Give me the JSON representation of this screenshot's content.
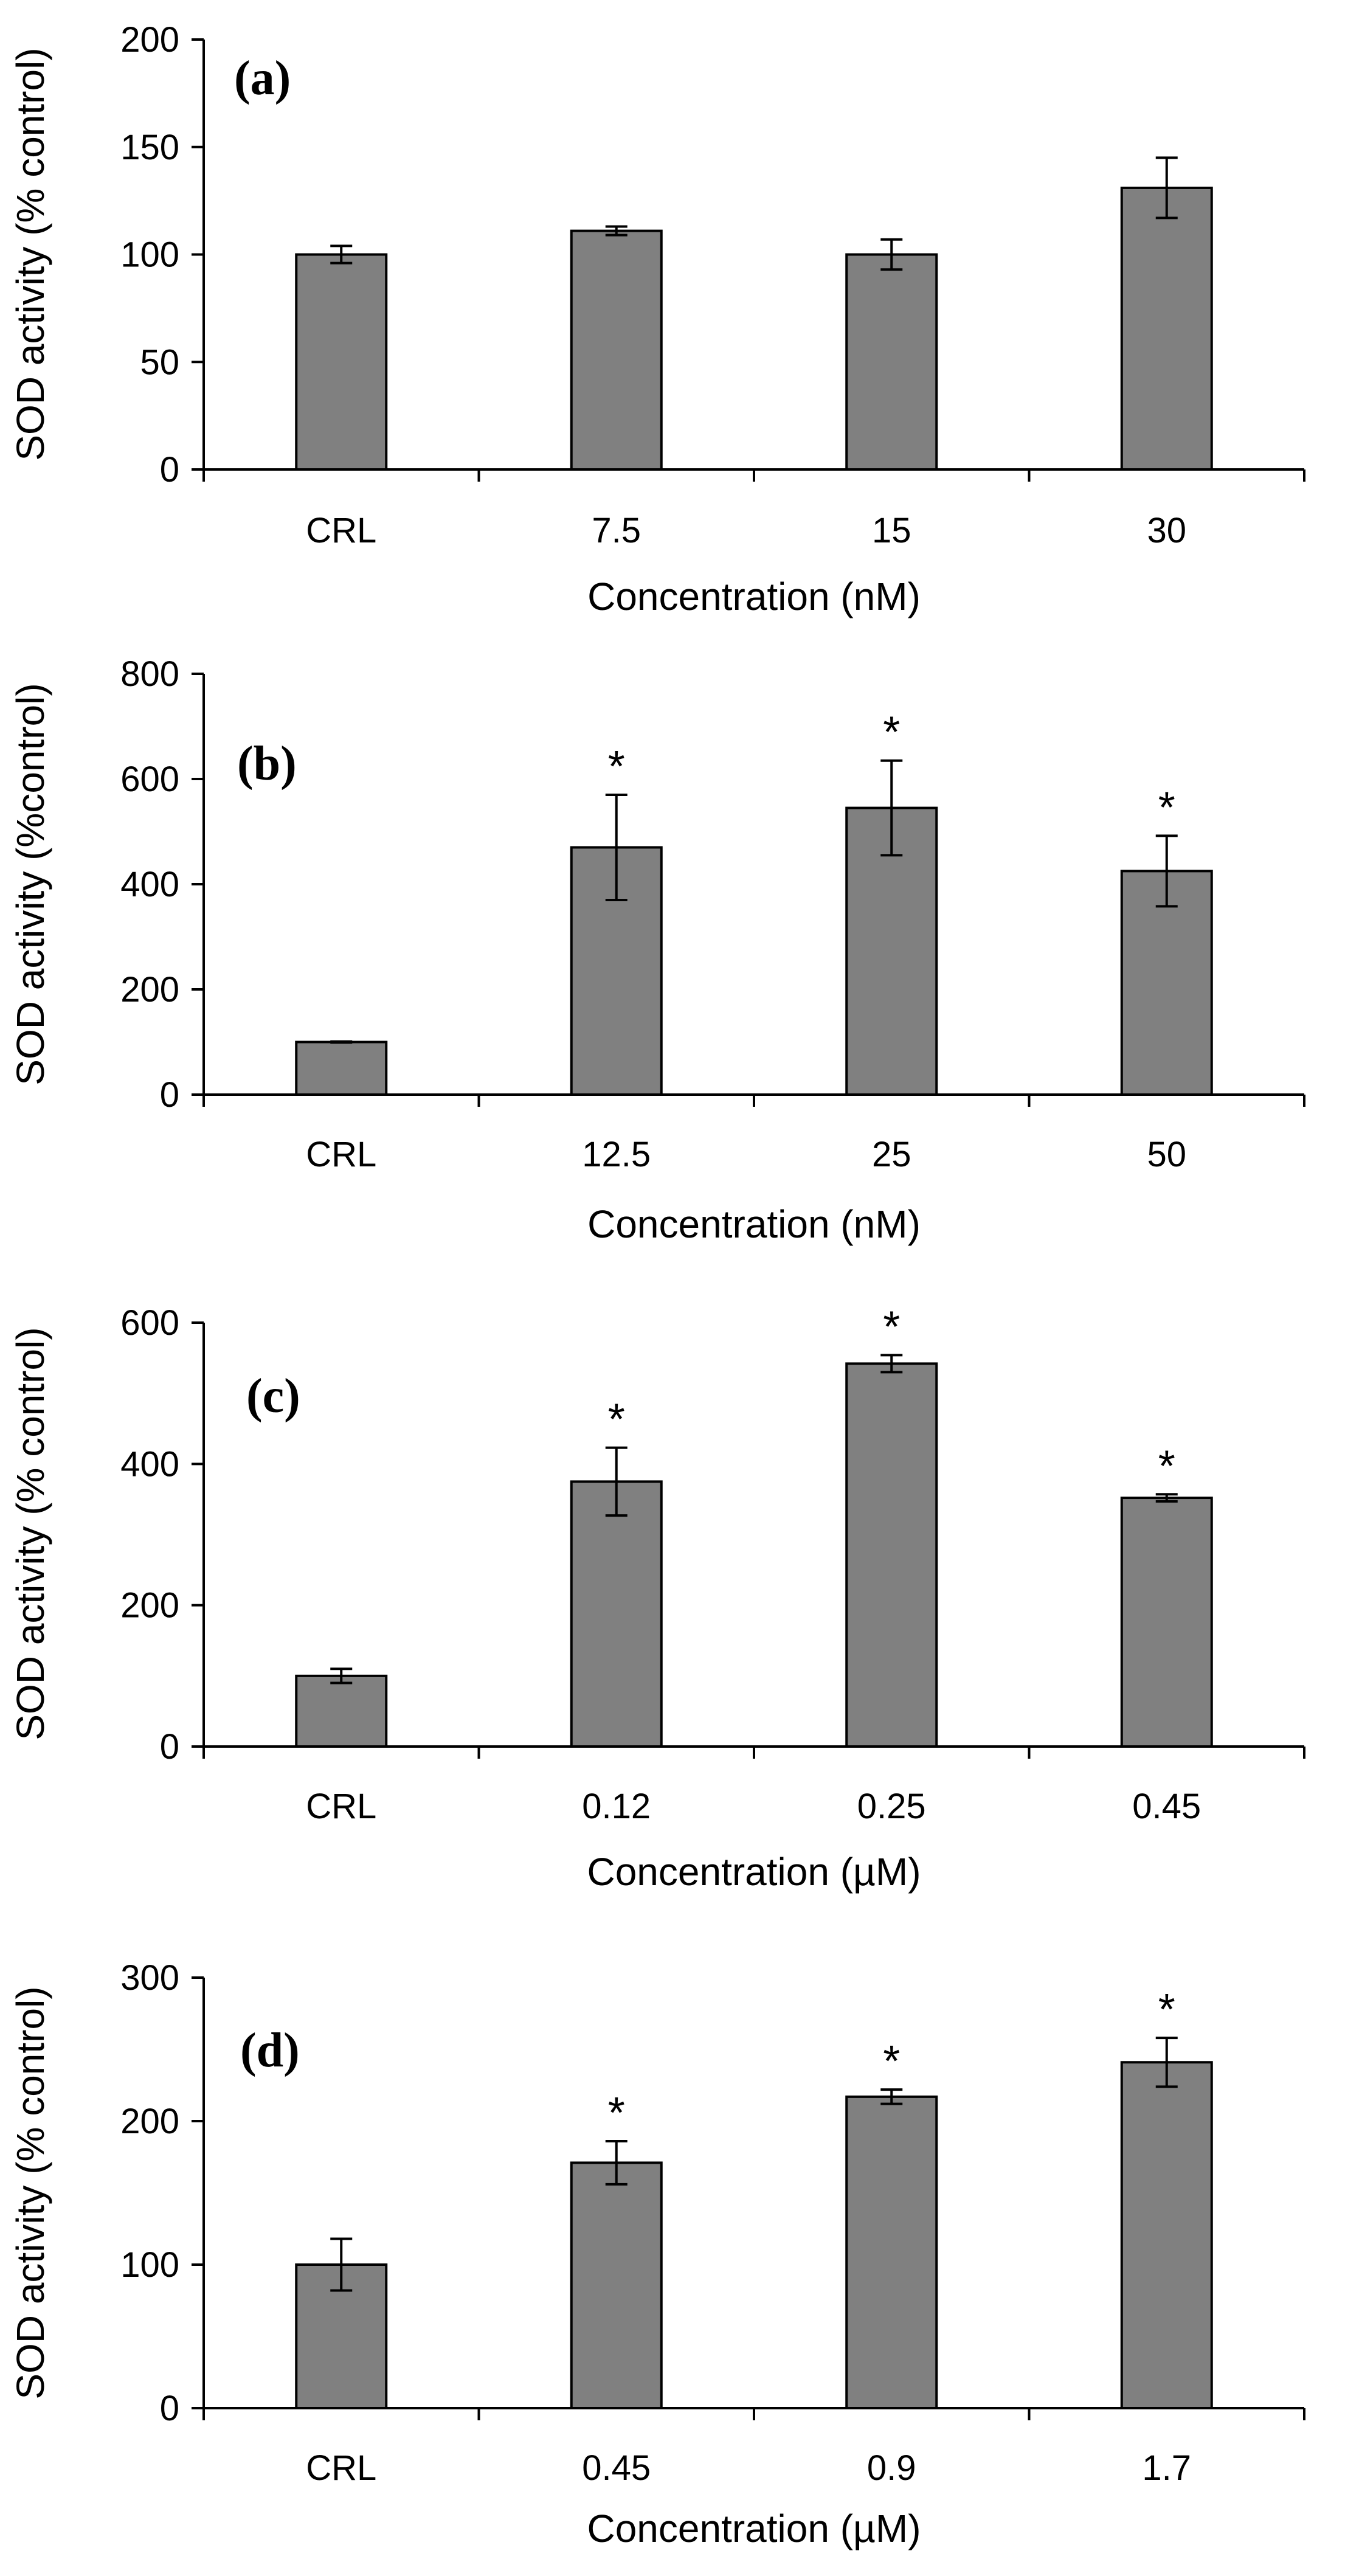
{
  "chart_data": [
    {
      "type": "bar",
      "panel_label": "(a)",
      "categories": [
        "CRL",
        "7.5",
        "15",
        "30"
      ],
      "values": [
        100,
        111,
        100,
        131
      ],
      "errors": [
        4,
        2,
        7,
        14
      ],
      "significant": [
        "",
        "",
        "",
        ""
      ],
      "ylabel": "SOD activity (% control)",
      "xlabel": "Concentration (nM)",
      "ylim": [
        0,
        200
      ],
      "yticks": [
        "0",
        "50",
        "100",
        "150",
        "200"
      ],
      "bar_color": "#808080",
      "grid": false
    },
    {
      "type": "bar",
      "panel_label": "(b)",
      "categories": [
        "CRL",
        "12.5",
        "25",
        "50"
      ],
      "values": [
        100,
        470,
        545,
        425
      ],
      "errors": [
        1,
        100,
        90,
        67
      ],
      "significant": [
        "",
        "*",
        "*",
        "*"
      ],
      "ylabel": "SOD activity (%control)",
      "xlabel": "Concentration (nM)",
      "ylim": [
        0,
        800
      ],
      "yticks": [
        "0",
        "200",
        "400",
        "600",
        "800"
      ],
      "bar_color": "#808080",
      "grid": false
    },
    {
      "type": "bar",
      "panel_label": "(c)",
      "categories": [
        "CRL",
        "0.12",
        "0.25",
        "0.45"
      ],
      "values": [
        100,
        375,
        542,
        352
      ],
      "errors": [
        10,
        48,
        12,
        5
      ],
      "significant": [
        "",
        "*",
        "*",
        "*"
      ],
      "ylabel": "SOD activity (% control)",
      "xlabel": "Concentration (µM)",
      "ylim": [
        0,
        600
      ],
      "yticks": [
        "0",
        "200",
        "400",
        "600"
      ],
      "bar_color": "#808080",
      "grid": false
    },
    {
      "type": "bar",
      "panel_label": "(d)",
      "categories": [
        "CRL",
        "0.45",
        "0.9",
        "1.7"
      ],
      "values": [
        100,
        171,
        217,
        241
      ],
      "errors": [
        18,
        15,
        5,
        17
      ],
      "significant": [
        "",
        "*",
        "*",
        "*"
      ],
      "ylabel": "SOD activity (% control)",
      "xlabel": "Concentration (µM)",
      "ylim": [
        0,
        300
      ],
      "yticks": [
        "0",
        "100",
        "200",
        "300"
      ],
      "bar_color": "#808080",
      "grid": false
    }
  ]
}
